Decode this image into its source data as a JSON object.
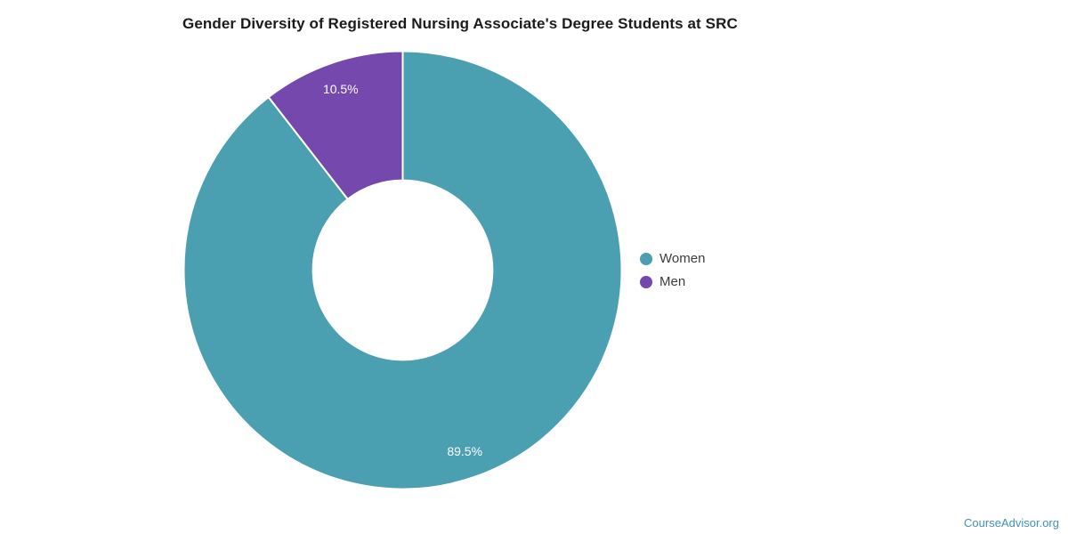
{
  "title": "Gender Diversity of Registered Nursing Associate's Degree Students at SRC",
  "watermark": "CourseAdvisor.org",
  "colors": {
    "women": "#4a9fb1",
    "men": "#7448ad",
    "slice_separator": "#ffffff",
    "title_text": "#1b1b1b",
    "legend_text": "#3c3c3c",
    "watermark_text": "#4191bb",
    "slice_label_text": "#ffffff",
    "background": "#ffffff"
  },
  "legend": {
    "items": [
      {
        "label": "Women",
        "color": "#4a9fb1"
      },
      {
        "label": "Men",
        "color": "#7448ad"
      }
    ]
  },
  "chart_data": {
    "type": "pie",
    "title": "Gender Diversity of Registered Nursing Associate's Degree Students at SRC",
    "categories": [
      "Women",
      "Men"
    ],
    "values": [
      89.5,
      10.5
    ],
    "slice_labels": [
      "89.5%",
      "10.5%"
    ],
    "slice_colors": [
      "#4a9fb1",
      "#7448ad"
    ],
    "donut": true,
    "hole_ratio": 0.41,
    "start_angle_deg": 0,
    "direction": "clockwise",
    "legend_position": "right",
    "grid": false
  }
}
